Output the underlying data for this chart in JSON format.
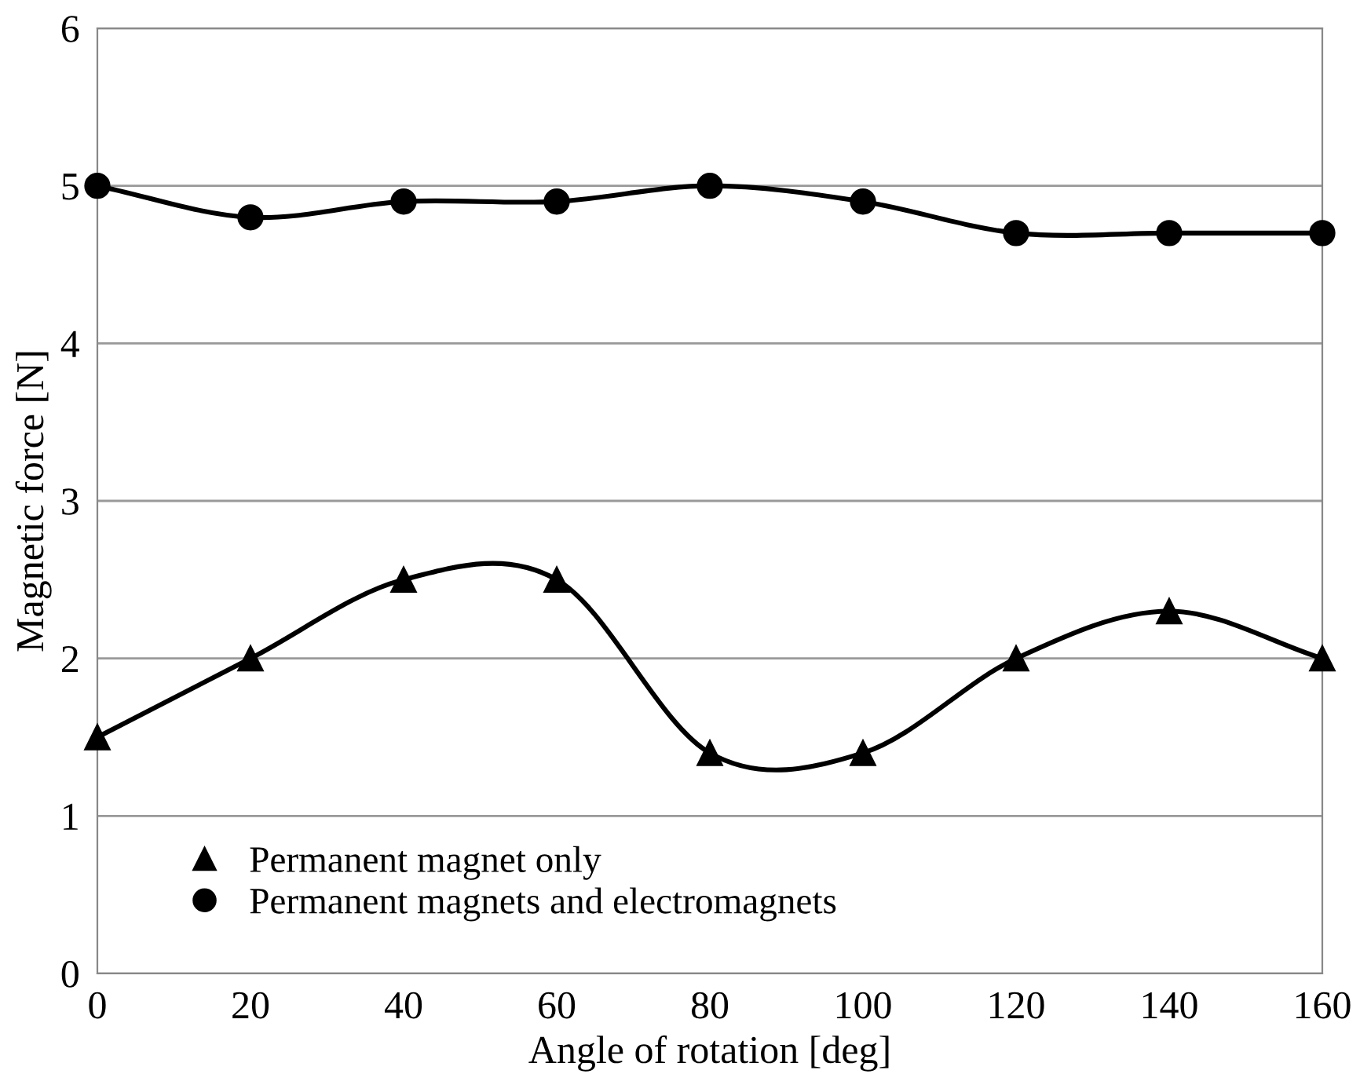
{
  "chart_data": {
    "type": "line",
    "xlabel": "Angle of rotation [deg]",
    "ylabel": "Magnetic force [N]",
    "x": [
      0,
      20,
      40,
      60,
      80,
      100,
      120,
      140,
      160
    ],
    "series": [
      {
        "name": "Permanent magnet only",
        "color": "#000000",
        "marker": "triangle",
        "values": [
          1.5,
          2.0,
          2.5,
          2.5,
          1.4,
          1.4,
          2.0,
          2.3,
          2.0
        ]
      },
      {
        "name": "Permanent magnets and electromagnets",
        "color": "#000000",
        "marker": "circle",
        "values": [
          5.0,
          4.8,
          4.9,
          4.9,
          5.0,
          4.9,
          4.7,
          4.7,
          4.7
        ]
      }
    ],
    "xlim": [
      0,
      160
    ],
    "xticks": [
      0,
      20,
      40,
      60,
      80,
      100,
      120,
      140,
      160
    ],
    "ylim": [
      0,
      6
    ],
    "yticks": [
      0,
      1,
      2,
      3,
      4,
      5,
      6
    ],
    "grid": "y",
    "legend": "bottom left",
    "line_style": "solid"
  }
}
